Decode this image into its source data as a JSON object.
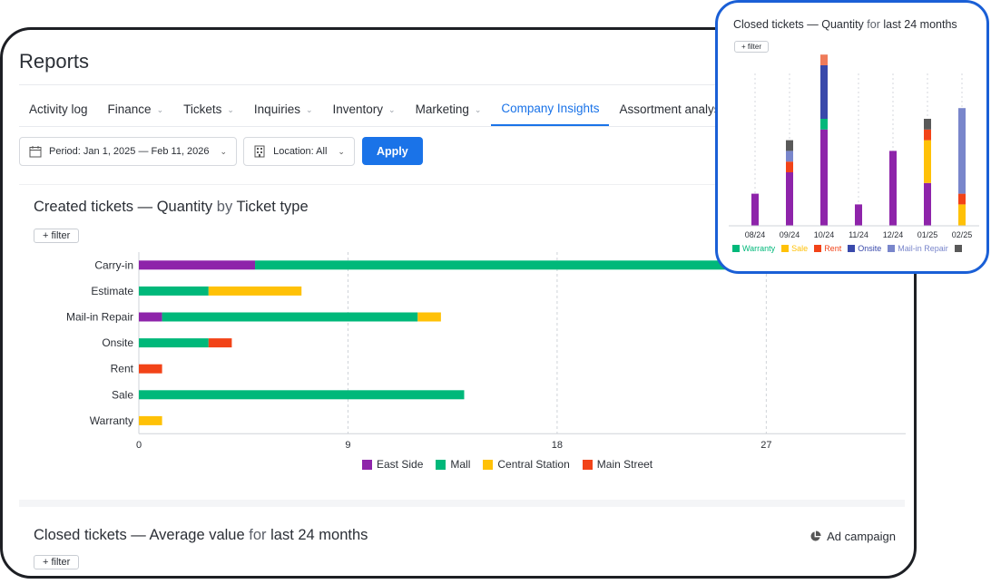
{
  "page": {
    "title": "Reports"
  },
  "tabs": [
    {
      "label": "Activity log",
      "dropdown": false,
      "active": false
    },
    {
      "label": "Finance",
      "dropdown": true,
      "active": false
    },
    {
      "label": "Tickets",
      "dropdown": true,
      "active": false
    },
    {
      "label": "Inquiries",
      "dropdown": true,
      "active": false
    },
    {
      "label": "Inventory",
      "dropdown": true,
      "active": false
    },
    {
      "label": "Marketing",
      "dropdown": true,
      "active": false
    },
    {
      "label": "Company Insights",
      "dropdown": false,
      "active": true
    },
    {
      "label": "Assortment analysis",
      "dropdown": false,
      "active": false
    }
  ],
  "filters": {
    "period_label": "Period: Jan 1, 2025 — Feb 11, 2026",
    "location_label": "Location: All",
    "apply_label": "Apply"
  },
  "colors": {
    "purple": "#8e24aa",
    "green": "#00b87a",
    "yellow": "#ffc107",
    "red": "#f24318",
    "navy": "#3949ab",
    "lavender": "#7986cb",
    "salmon": "#ef7b5a",
    "gray": "#595959",
    "accent": "#1a73e8"
  },
  "card1": {
    "title_main": "Created tickets — Quantity",
    "title_by": "by",
    "title_dim": "Ticket type",
    "filter_chip": "+ filter"
  },
  "card2": {
    "title_main": "Closed tickets — Average value",
    "title_for": "for",
    "title_dim": "last 24 months",
    "filter_chip": "+ filter",
    "ad_campaign": "Ad campaign",
    "ad_icon": "pie-chart-icon"
  },
  "popup": {
    "title_main": "Closed tickets — Quantity",
    "title_for": "for",
    "title_dim": "last 24 months",
    "filter_chip": "+ filter"
  },
  "chart_data": [
    {
      "type": "bar",
      "orientation": "horizontal",
      "stacked": true,
      "title": "Created tickets — Quantity by Ticket type",
      "categories": [
        "Carry-in",
        "Estimate",
        "Mail-in Repair",
        "Onsite",
        "Rent",
        "Sale",
        "Warranty"
      ],
      "series": [
        {
          "name": "East Side",
          "color": "#8e24aa",
          "values": [
            5,
            0,
            1,
            0,
            0,
            0,
            0
          ]
        },
        {
          "name": "Mall",
          "color": "#00b87a",
          "values": [
            25,
            3,
            11,
            3,
            0,
            14,
            0
          ]
        },
        {
          "name": "Central Station",
          "color": "#ffc107",
          "values": [
            0,
            4,
            1,
            0,
            0,
            0,
            1
          ]
        },
        {
          "name": "Main Street",
          "color": "#f24318",
          "values": [
            0,
            0,
            0,
            1,
            1,
            0,
            0
          ]
        }
      ],
      "xticks": [
        0,
        9,
        18,
        27
      ],
      "xlim": [
        0,
        33
      ],
      "grid": true,
      "legend": "bottom"
    },
    {
      "type": "bar",
      "orientation": "vertical",
      "stacked": true,
      "title": "Closed tickets — Quantity for last 24 months",
      "categories": [
        "08/24",
        "09/24",
        "10/24",
        "11/24",
        "12/24",
        "01/25",
        "02/25"
      ],
      "series": [
        {
          "name": "Warranty",
          "color": "#00b87a",
          "values": [
            0,
            0,
            1,
            0,
            0,
            0,
            0
          ]
        },
        {
          "name": "Sale",
          "color": "#ffc107",
          "values": [
            0,
            0,
            0,
            0,
            0,
            4,
            2
          ]
        },
        {
          "name": "Rent",
          "color": "#f24318",
          "values": [
            0,
            1,
            0,
            0,
            0,
            1,
            1
          ]
        },
        {
          "name": "Onsite",
          "color": "#3949ab",
          "values": [
            0,
            0,
            5,
            0,
            0,
            0,
            0
          ]
        },
        {
          "name": "Mail-in Repair",
          "color": "#7986cb",
          "values": [
            0,
            1,
            0,
            0,
            0,
            0,
            8
          ]
        },
        {
          "name": "",
          "color": "#595959",
          "values": [
            0,
            1,
            0,
            0,
            0,
            1,
            0
          ]
        },
        {
          "name": "",
          "color": "#8e24aa",
          "values": [
            3,
            5,
            9,
            2,
            7,
            4,
            0
          ],
          "legend": false
        },
        {
          "name": "",
          "color": "#ef7b5a",
          "values": [
            0,
            0,
            1,
            0,
            0,
            0,
            0
          ],
          "legend": false
        }
      ],
      "grid": true,
      "legend": "bottom"
    }
  ]
}
